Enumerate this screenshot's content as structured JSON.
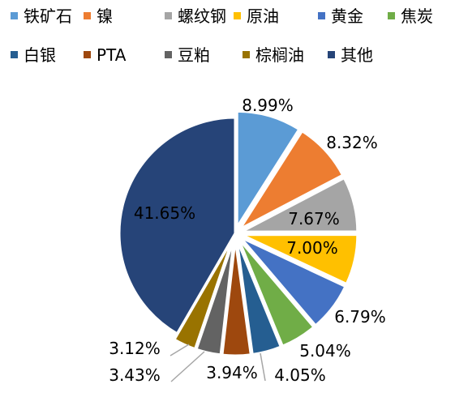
{
  "chart_data": {
    "type": "pie",
    "title": "",
    "legend_position": "top",
    "slices": [
      {
        "label": "铁矿石",
        "value": 8.99,
        "display": "8.99%",
        "color": "#5B9BD5",
        "label_outside": true,
        "leader": false
      },
      {
        "label": "镍",
        "value": 8.32,
        "display": "8.32%",
        "color": "#ED7D31",
        "label_outside": true,
        "leader": false
      },
      {
        "label": "螺纹钢",
        "value": 7.67,
        "display": "7.67%",
        "color": "#A5A5A5",
        "label_outside": false,
        "leader": false
      },
      {
        "label": "原油",
        "value": 7.0,
        "display": "7.00%",
        "color": "#FFC000",
        "label_outside": false,
        "leader": false
      },
      {
        "label": "黄金",
        "value": 6.79,
        "display": "6.79%",
        "color": "#4472C4",
        "label_outside": true,
        "leader": false
      },
      {
        "label": "焦炭",
        "value": 5.04,
        "display": "5.04%",
        "color": "#70AD47",
        "label_outside": true,
        "leader": false
      },
      {
        "label": "白银",
        "value": 4.05,
        "display": "4.05%",
        "color": "#255E91",
        "label_outside": true,
        "leader": true
      },
      {
        "label": "PTA",
        "value": 3.94,
        "display": "3.94%",
        "color": "#9E480E",
        "label_outside": true,
        "leader": false
      },
      {
        "label": "豆粕",
        "value": 3.43,
        "display": "3.43%",
        "color": "#636363",
        "label_outside": true,
        "leader": true
      },
      {
        "label": "棕榈油",
        "value": 3.12,
        "display": "3.12%",
        "color": "#997300",
        "label_outside": true,
        "leader": true
      },
      {
        "label": "其他",
        "value": 41.65,
        "display": "41.65%",
        "color": "#264478",
        "label_outside": false,
        "leader": false
      }
    ]
  }
}
